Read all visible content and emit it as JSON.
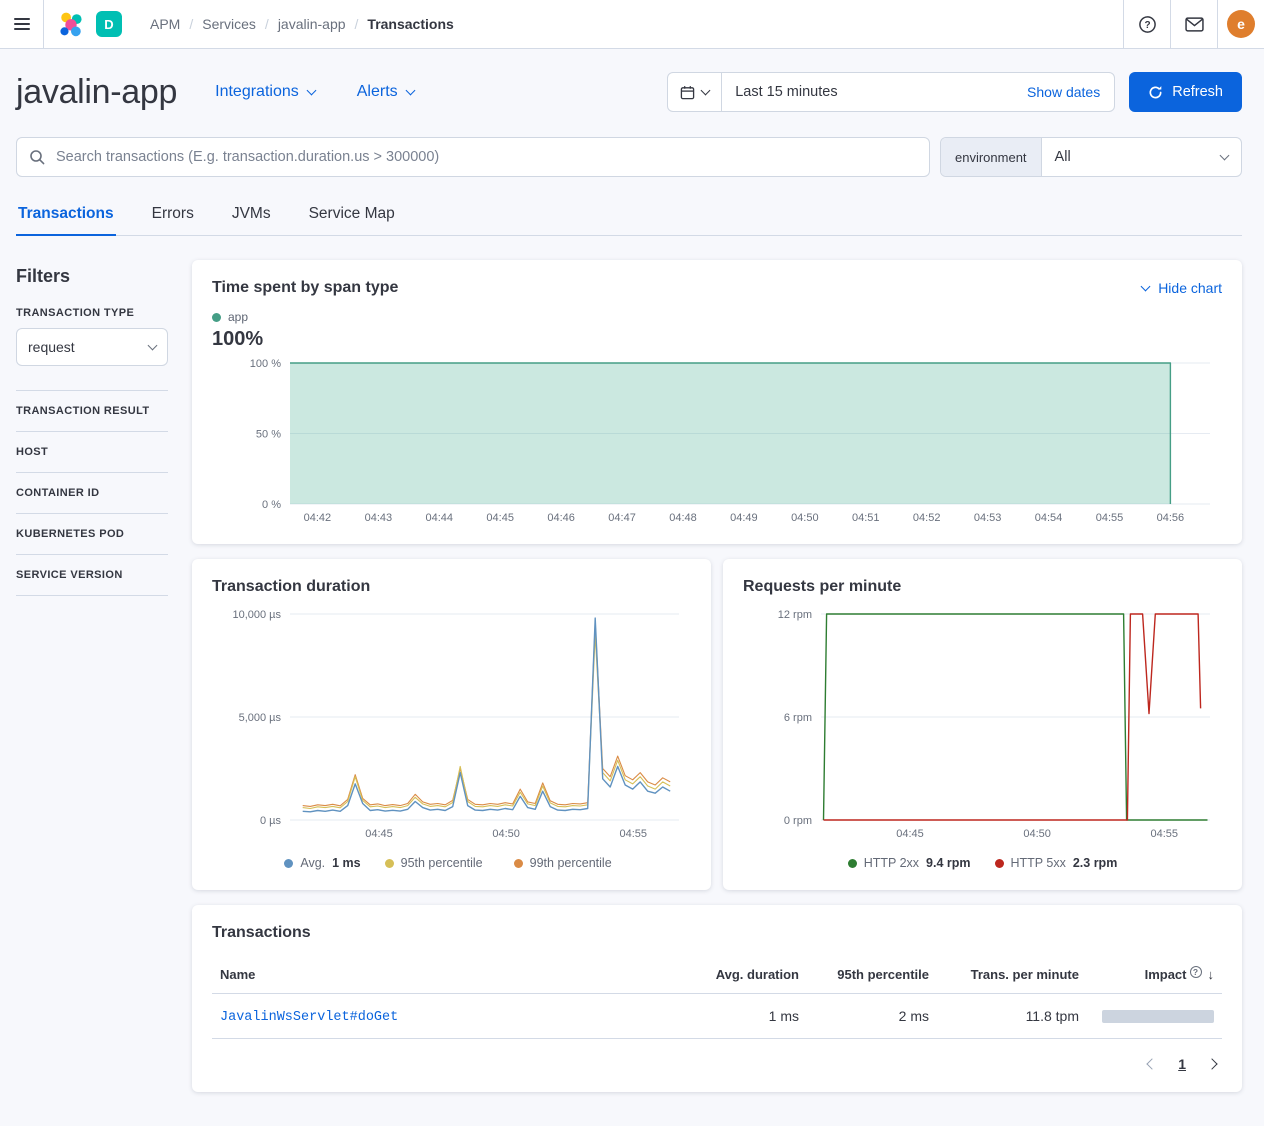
{
  "colors": {
    "accent_blue": "#0B64DD",
    "deployment_badge": "#00BFB3",
    "avatar": "#df7e2d",
    "impact_bar": "#ccd4df"
  },
  "topbar": {
    "breadcrumbs": [
      "APM",
      "Services",
      "javalin-app",
      "Transactions"
    ],
    "deployment_badge": "D",
    "avatar_initial": "e"
  },
  "header": {
    "title": "javalin-app",
    "integrations": "Integrations",
    "alerts": "Alerts",
    "time_range": "Last 15 minutes",
    "show_dates": "Show dates",
    "refresh": "Refresh"
  },
  "search": {
    "placeholder": "Search transactions (E.g. transaction.duration.us > 300000)",
    "environment_label": "environment",
    "environment_value": "All"
  },
  "tabs": {
    "items": [
      "Transactions",
      "Errors",
      "JVMs",
      "Service Map"
    ],
    "active": "Transactions"
  },
  "filters": {
    "title": "Filters",
    "type_label": "TRANSACTION TYPE",
    "type_value": "request",
    "sections": [
      "TRANSACTION RESULT",
      "HOST",
      "CONTAINER ID",
      "KUBERNETES POD",
      "SERVICE VERSION"
    ]
  },
  "span_chart": {
    "title": "Time spent by span type",
    "hide_chart": "Hide chart",
    "legend_app": "app",
    "legend_color": "#459e86",
    "big_value": "100%",
    "plot": {
      "ml": 78,
      "xlim": [
        41.55,
        56.65
      ],
      "ylim": [
        0,
        100
      ],
      "y_ticks": [
        {
          "v": 100,
          "label": "100 %"
        },
        {
          "v": 50,
          "label": "50 %"
        },
        {
          "v": 0,
          "label": "0 %"
        }
      ],
      "x_ticks": [
        {
          "v": 42,
          "label": "04:42"
        },
        {
          "v": 43,
          "label": "04:43"
        },
        {
          "v": 44,
          "label": "04:44"
        },
        {
          "v": 45,
          "label": "04:45"
        },
        {
          "v": 46,
          "label": "04:46"
        },
        {
          "v": 47,
          "label": "04:47"
        },
        {
          "v": 48,
          "label": "04:48"
        },
        {
          "v": 49,
          "label": "04:49"
        },
        {
          "v": 50,
          "label": "04:50"
        },
        {
          "v": 51,
          "label": "04:51"
        },
        {
          "v": 52,
          "label": "04:52"
        },
        {
          "v": 53,
          "label": "04:53"
        },
        {
          "v": 54,
          "label": "04:54"
        },
        {
          "v": 55,
          "label": "04:55"
        },
        {
          "v": 56,
          "label": "04:56"
        }
      ],
      "series": [
        {
          "name": "app",
          "color": "#459e86",
          "fill": "rgba(84,179,153,0.3)",
          "w": 1.4,
          "points": [
            [
              41.55,
              100
            ],
            [
              56.0,
              100
            ],
            [
              56.0,
              0
            ]
          ]
        }
      ]
    }
  },
  "duration_chart": {
    "title": "Transaction duration",
    "legend": [
      {
        "label": "Avg.",
        "value": "1 ms",
        "color": "#6092C0"
      },
      {
        "label": "95th percentile",
        "value": "",
        "color": "#D6BF57"
      },
      {
        "label": "99th percentile",
        "value": "",
        "color": "#DA8B45"
      }
    ],
    "plot": {
      "ml": 78,
      "xlim": [
        41.5,
        56.8
      ],
      "ylim": [
        0,
        10000
      ],
      "y_ticks": [
        {
          "v": 10000,
          "label": "10,000 µs"
        },
        {
          "v": 5000,
          "label": "5,000 µs"
        },
        {
          "v": 0,
          "label": "0 µs"
        }
      ],
      "x_ticks": [
        {
          "v": 45,
          "label": "04:45"
        },
        {
          "v": 50,
          "label": "04:50"
        },
        {
          "v": 55,
          "label": "04:55"
        }
      ],
      "series": [
        {
          "name": "99th percentile",
          "color": "#DA8B45",
          "x0": 42,
          "dx": 0.295,
          "w": 1.1,
          "values": [
            700,
            660,
            740,
            700,
            760,
            690,
            1000,
            2200,
            1050,
            740,
            780,
            700,
            750,
            700,
            800,
            1250,
            880,
            760,
            800,
            740,
            950,
            2500,
            1000,
            760,
            740,
            800,
            760,
            840,
            780,
            1500,
            880,
            800,
            1800,
            930,
            760,
            740,
            800,
            780,
            840,
            9600,
            2500,
            2100,
            3100,
            2150,
            1950,
            2300,
            1850,
            1700,
            2050,
            1850
          ]
        },
        {
          "name": "95th percentile",
          "color": "#D6BF57",
          "x0": 42,
          "dx": 0.295,
          "w": 1.1,
          "values": [
            600,
            560,
            640,
            600,
            660,
            590,
            900,
            2100,
            950,
            640,
            680,
            600,
            650,
            600,
            700,
            1100,
            780,
            660,
            700,
            640,
            850,
            2600,
            900,
            660,
            640,
            700,
            660,
            740,
            680,
            1350,
            780,
            700,
            1650,
            830,
            660,
            640,
            700,
            680,
            740,
            9000,
            2300,
            1900,
            2900,
            1950,
            1750,
            2100,
            1650,
            1500,
            1850,
            1650
          ]
        },
        {
          "name": "Avg.",
          "color": "#6092C0",
          "x0": 42,
          "dx": 0.295,
          "w": 1.4,
          "values": [
            420,
            400,
            460,
            420,
            480,
            420,
            700,
            1750,
            800,
            460,
            500,
            430,
            470,
            430,
            520,
            900,
            600,
            480,
            520,
            460,
            650,
            2300,
            700,
            480,
            460,
            520,
            480,
            560,
            500,
            1150,
            600,
            520,
            1400,
            650,
            480,
            460,
            520,
            500,
            560,
            9800,
            2000,
            1600,
            2600,
            1700,
            1500,
            1850,
            1400,
            1300,
            1600,
            1400
          ]
        }
      ]
    }
  },
  "rpm_chart": {
    "title": "Requests per minute",
    "legend": [
      {
        "label": "HTTP 2xx",
        "value": "9.4 rpm",
        "color": "#2e7d32"
      },
      {
        "label": "HTTP 5xx",
        "value": "2.3 rpm",
        "color": "#bd271e"
      }
    ],
    "plot": {
      "ml": 78,
      "xlim": [
        41.5,
        56.8
      ],
      "ylim": [
        0,
        12
      ],
      "y_ticks": [
        {
          "v": 12,
          "label": "12 rpm"
        },
        {
          "v": 6,
          "label": "6 rpm"
        },
        {
          "v": 0,
          "label": "0 rpm"
        }
      ],
      "x_ticks": [
        {
          "v": 45,
          "label": "04:45"
        },
        {
          "v": 50,
          "label": "04:50"
        },
        {
          "v": 55,
          "label": "04:55"
        }
      ],
      "series": [
        {
          "name": "HTTP 2xx",
          "color": "#2e7d32",
          "w": 1.4,
          "points": [
            [
              41.6,
              0
            ],
            [
              41.72,
              12
            ],
            [
              53.4,
              12
            ],
            [
              53.52,
              0
            ],
            [
              56.7,
              0
            ]
          ]
        },
        {
          "name": "HTTP 5xx",
          "color": "#bd271e",
          "w": 1.4,
          "points": [
            [
              41.6,
              0
            ],
            [
              53.55,
              0
            ],
            [
              53.67,
              12
            ],
            [
              54.15,
              12
            ],
            [
              54.4,
              6.2
            ],
            [
              54.65,
              12
            ],
            [
              56.33,
              12
            ],
            [
              56.43,
              6.5
            ]
          ]
        }
      ]
    }
  },
  "table": {
    "title": "Transactions",
    "columns": [
      "Name",
      "Avg. duration",
      "95th percentile",
      "Trans. per minute",
      "Impact"
    ],
    "rows": [
      {
        "name": "JavalinWsServlet#doGet",
        "avg_duration": "1 ms",
        "p95": "2 ms",
        "tpm": "11.8 tpm"
      }
    ],
    "page": "1"
  }
}
